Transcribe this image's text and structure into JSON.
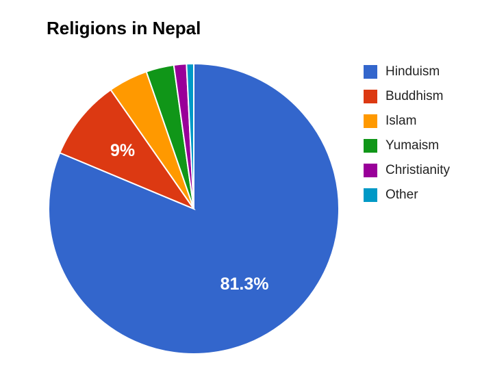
{
  "chart_data": {
    "type": "pie",
    "title": "Religions in Nepal",
    "legend_position": "right",
    "categories": [
      "Hinduism",
      "Buddhism",
      "Islam",
      "Yumaism",
      "Christianity",
      "Other"
    ],
    "values": [
      81.3,
      9.0,
      4.4,
      3.1,
      1.4,
      0.8
    ],
    "colors": [
      "#3366cc",
      "#dc3912",
      "#ff9900",
      "#109618",
      "#990099",
      "#0099c6"
    ],
    "slice_labels": [
      "81.3%",
      "9%",
      "",
      "",
      "",
      ""
    ]
  }
}
